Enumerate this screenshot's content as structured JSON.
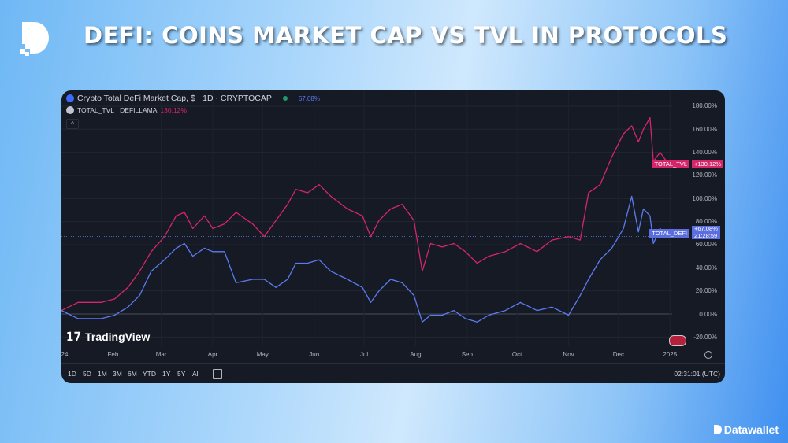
{
  "header": {
    "title": "DEFI: COINS MARKET CAP VS TVL IN PROTOCOLS",
    "brand": "Datawallet"
  },
  "chart_header": {
    "series1_title": "Crypto Total DeFi Market Cap, $ · 1D · CRYPTOCAP",
    "series1_value": "67.08%",
    "series2_title": "TOTAL_TVL · DEFILLAMA",
    "series2_value": "130.12%"
  },
  "watermark": "TradingView",
  "toolbar": {
    "ranges": [
      "1D",
      "5D",
      "1M",
      "3M",
      "6M",
      "YTD",
      "1Y",
      "5Y",
      "All"
    ],
    "clock": "02:31:01 (UTC)"
  },
  "tags": {
    "tvl_name": "TOTAL_TVL",
    "tvl_value": "+130.12%",
    "defi_name": "TOTAL_DEFI",
    "defi_value": "+67.08%",
    "defi_countdown": "21:28:59"
  },
  "colors": {
    "tvl": "#d6266a",
    "defi": "#5b7cf0",
    "background": "#161a25"
  },
  "chart_data": {
    "type": "line",
    "xlabel": "",
    "ylabel": "",
    "x_ticks": [
      "24",
      "Feb",
      "Mar",
      "Apr",
      "May",
      "Jun",
      "Jul",
      "Aug",
      "Sep",
      "Oct",
      "Nov",
      "Dec",
      "2025"
    ],
    "y_ticks": [
      "180.00%",
      "160.00%",
      "140.00%",
      "120.00%",
      "100.00%",
      "80.00%",
      "60.00%",
      "40.00%",
      "20.00%",
      "0.00%",
      "-20.00%"
    ],
    "ylim": [
      -25,
      185
    ],
    "y_unit": "%",
    "grid": true,
    "x": [
      "2024-01-01",
      "2024-01-11",
      "2024-01-25",
      "2024-02-02",
      "2024-02-10",
      "2024-02-17",
      "2024-02-24",
      "2024-03-03",
      "2024-03-10",
      "2024-03-15",
      "2024-03-20",
      "2024-03-27",
      "2024-04-01",
      "2024-04-08",
      "2024-04-15",
      "2024-04-25",
      "2024-05-02",
      "2024-05-09",
      "2024-05-16",
      "2024-05-21",
      "2024-05-28",
      "2024-06-04",
      "2024-06-11",
      "2024-06-21",
      "2024-06-30",
      "2024-07-05",
      "2024-07-10",
      "2024-07-17",
      "2024-07-24",
      "2024-07-31",
      "2024-08-05",
      "2024-08-10",
      "2024-08-17",
      "2024-08-24",
      "2024-08-31",
      "2024-09-07",
      "2024-09-14",
      "2024-09-24",
      "2024-10-03",
      "2024-10-13",
      "2024-10-22",
      "2024-11-01",
      "2024-11-08",
      "2024-11-13",
      "2024-11-20",
      "2024-11-27",
      "2024-12-04",
      "2024-12-09",
      "2024-12-13",
      "2024-12-16",
      "2024-12-20",
      "2024-12-22",
      "2024-12-26",
      "2024-12-31"
    ],
    "series": [
      {
        "name": "TOTAL_TVL",
        "color": "#d6266a",
        "values": [
          3,
          10,
          10,
          13,
          23,
          37,
          54,
          67,
          85,
          88,
          74,
          85,
          74,
          78,
          88,
          78,
          67,
          81,
          95,
          108,
          105,
          112,
          102,
          91,
          85,
          67,
          81,
          91,
          95,
          81,
          37,
          61,
          58,
          61,
          54,
          44,
          50,
          54,
          61,
          54,
          64,
          67,
          64,
          105,
          112,
          136,
          156,
          163,
          149,
          160,
          170,
          132,
          140,
          130.12
        ]
      },
      {
        "name": "TOTAL_DEFI",
        "color": "#5b7cf0",
        "values": [
          3,
          -4,
          -4,
          -1,
          6,
          16,
          37,
          47,
          57,
          61,
          50,
          57,
          54,
          54,
          27,
          30,
          30,
          23,
          30,
          44,
          44,
          47,
          37,
          30,
          23,
          10,
          20,
          30,
          27,
          16,
          -7,
          -1,
          -1,
          3,
          -4,
          -7,
          -1,
          3,
          10,
          3,
          6,
          -1,
          16,
          30,
          47,
          57,
          74,
          102,
          71,
          91,
          85,
          61,
          74,
          67.08
        ]
      }
    ]
  }
}
